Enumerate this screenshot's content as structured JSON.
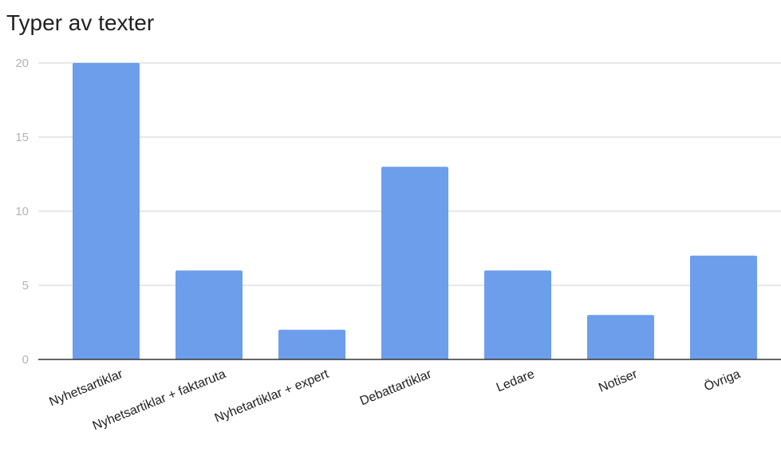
{
  "chart_data": {
    "type": "bar",
    "title": "Typer av texter",
    "categories": [
      "Nyhetsartiklar",
      "Nyhetsartiklar + faktaruta",
      "Nyhetartiklar + expert",
      "Debattartiklar",
      "Ledare",
      "Notiser",
      "Övriga"
    ],
    "values": [
      20,
      6,
      2,
      13,
      6,
      3,
      7
    ],
    "ylim": [
      0,
      20
    ],
    "yticks": [
      0,
      5,
      10,
      15,
      20
    ],
    "grid": true,
    "bar_color": "#6d9eeb"
  }
}
